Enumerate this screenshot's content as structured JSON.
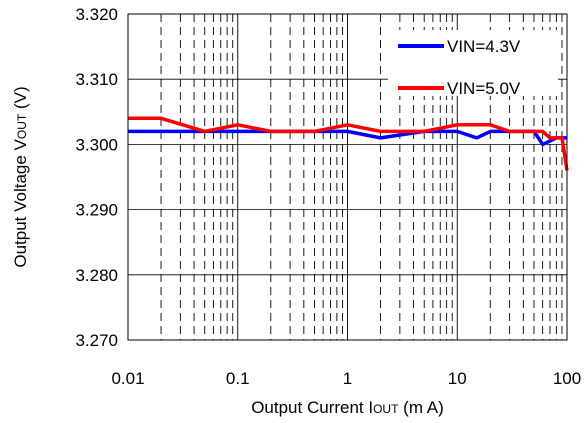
{
  "chart_data": {
    "type": "line",
    "x_scale": "log",
    "xlabel": "Output Current I",
    "xlabel_sub": "OUT",
    "xlabel_unit": " (m A)",
    "ylabel": "Output Voltage V",
    "ylabel_sub": "OUT",
    "ylabel_unit": "  (V)",
    "xlim": [
      0.01,
      100
    ],
    "ylim": [
      3.27,
      3.32
    ],
    "x_ticks": [
      0.01,
      0.1,
      1,
      10,
      100
    ],
    "x_tick_labels": [
      "0.01",
      "0.1",
      "1",
      "10",
      "100"
    ],
    "y_ticks": [
      3.27,
      3.28,
      3.29,
      3.3,
      3.31,
      3.32
    ],
    "y_tick_labels": [
      "3.270",
      "3.280",
      "3.290",
      "3.300",
      "3.310",
      "3.320"
    ],
    "grid": true,
    "legend_position": "top-right",
    "series": [
      {
        "name": "VIN=4.3V",
        "color": "#0000ff",
        "x": [
          0.01,
          0.02,
          0.05,
          0.1,
          0.2,
          0.5,
          1,
          2,
          5,
          10,
          15,
          20,
          30,
          50,
          60,
          80,
          100
        ],
        "y": [
          3.302,
          3.302,
          3.302,
          3.302,
          3.302,
          3.302,
          3.302,
          3.301,
          3.302,
          3.302,
          3.301,
          3.302,
          3.302,
          3.302,
          3.3,
          3.301,
          3.301
        ]
      },
      {
        "name": "VIN=5.0V",
        "color": "#ff0000",
        "x": [
          0.01,
          0.02,
          0.05,
          0.1,
          0.2,
          0.5,
          1,
          2,
          5,
          10,
          20,
          30,
          50,
          60,
          70,
          90,
          100
        ],
        "y": [
          3.304,
          3.304,
          3.302,
          3.303,
          3.302,
          3.302,
          3.303,
          3.302,
          3.302,
          3.303,
          3.303,
          3.302,
          3.302,
          3.302,
          3.301,
          3.301,
          3.296
        ]
      }
    ]
  }
}
